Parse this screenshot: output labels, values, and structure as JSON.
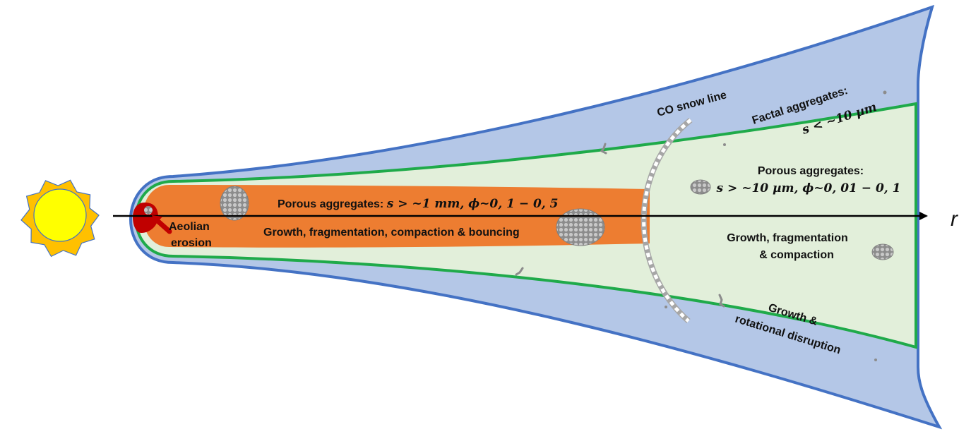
{
  "colors": {
    "outer_disk": "#b4c7e7",
    "outer_edge": "#4472c4",
    "inner_disk": "#e2efda",
    "inner_edge": "#1faa4a",
    "midplane": "#ed7d31",
    "erosion": "#c00000",
    "sun_fill": "#ffff00",
    "sun_rays": "#ffc000",
    "snowline_dash": "#ffffff",
    "snowline_back": "#a6a6a6",
    "aggregate": "#9a9a9a"
  },
  "icons": {
    "sun": "sun-icon",
    "erosion_arrow": "arrow-icon",
    "aggregate": "dust-aggregate-icon"
  },
  "labels": {
    "co_snow_line": "CO snow line",
    "fractal_title": "Factal aggregates:",
    "fractal_size": "s < ~10 µm",
    "porous_outer_title": "Porous aggregates:",
    "porous_outer_detail": "s > ~10 µm, ϕ~0, 01 − 0, 1",
    "porous_inner_prefix": "Porous aggregates: ",
    "porous_inner_detail": "s >  ~1 mm, ϕ~0, 1 − 0, 5",
    "inner_process": "Growth, fragmentation, compaction & bouncing",
    "outer_process_line1": "Growth, fragmentation",
    "outer_process_line2": "& compaction",
    "upper_process_line1": "Growth &",
    "upper_process_line2": "rotational disruption",
    "aeolian_line1": "Aeolian",
    "aeolian_line2": "erosion",
    "axis_r": "r"
  }
}
